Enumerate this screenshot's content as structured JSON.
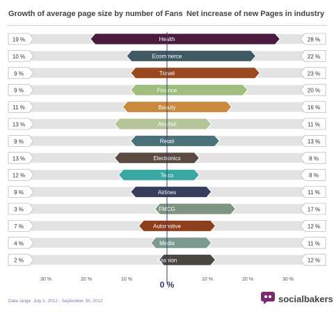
{
  "header": {
    "left_title": "Growth of average page size by number of Fans",
    "right_title": "Net increase of new Pages in industry"
  },
  "chart_data": {
    "type": "bar",
    "left_label": "Growth of average page size by number of Fans",
    "right_label": "Net increase of new Pages in industry",
    "categories": [
      "Health",
      "Ecommerce",
      "Travel",
      "Finance",
      "Beauty",
      "Alcohol",
      "Retail",
      "Electronics",
      "Telco",
      "Airlines",
      "FMCG",
      "Automotive",
      "Media",
      "Fashion"
    ],
    "series": [
      {
        "name": "Growth of average page size by number of Fans",
        "values": [
          19,
          10,
          9,
          9,
          11,
          13,
          9,
          13,
          12,
          9,
          3,
          7,
          4,
          2
        ]
      },
      {
        "name": "Net increase of new Pages in industry",
        "values": [
          28,
          22,
          23,
          20,
          16,
          11,
          13,
          8,
          8,
          11,
          17,
          12,
          11,
          12
        ]
      }
    ],
    "left_value_labels": [
      "19 %",
      "10 %",
      "9 %",
      "9 %",
      "11 %",
      "13 %",
      "9 %",
      "13 %",
      "12 %",
      "9 %",
      "3 %",
      "7 %",
      "4 %",
      "2 %"
    ],
    "right_value_labels": [
      "28 %",
      "22 %",
      "23 %",
      "20 %",
      "16 %",
      "11 %",
      "13 %",
      "8 %",
      "8 %",
      "11 %",
      "17 %",
      "12 %",
      "11 %",
      "12 %"
    ],
    "colors": [
      "#4a1a3f",
      "#3f5a63",
      "#9a4a1f",
      "#9fbe7e",
      "#c98a3f",
      "#b6c49a",
      "#4a7078",
      "#5a4a42",
      "#3aa8a2",
      "#363e5c",
      "#7c9480",
      "#8f3e1c",
      "#7c9a8e",
      "#4a4640"
    ],
    "x_ticks_left": [
      "30 %",
      "20 %",
      "10 %"
    ],
    "x_ticks_right": [
      "10 %",
      "20 %",
      "30 %"
    ],
    "center_label": "0 %",
    "xlim": [
      -30,
      30
    ]
  },
  "footer": {
    "date_range": "Data range: July 1, 2012 - September 30, 2012",
    "brand": "socialbakers"
  }
}
